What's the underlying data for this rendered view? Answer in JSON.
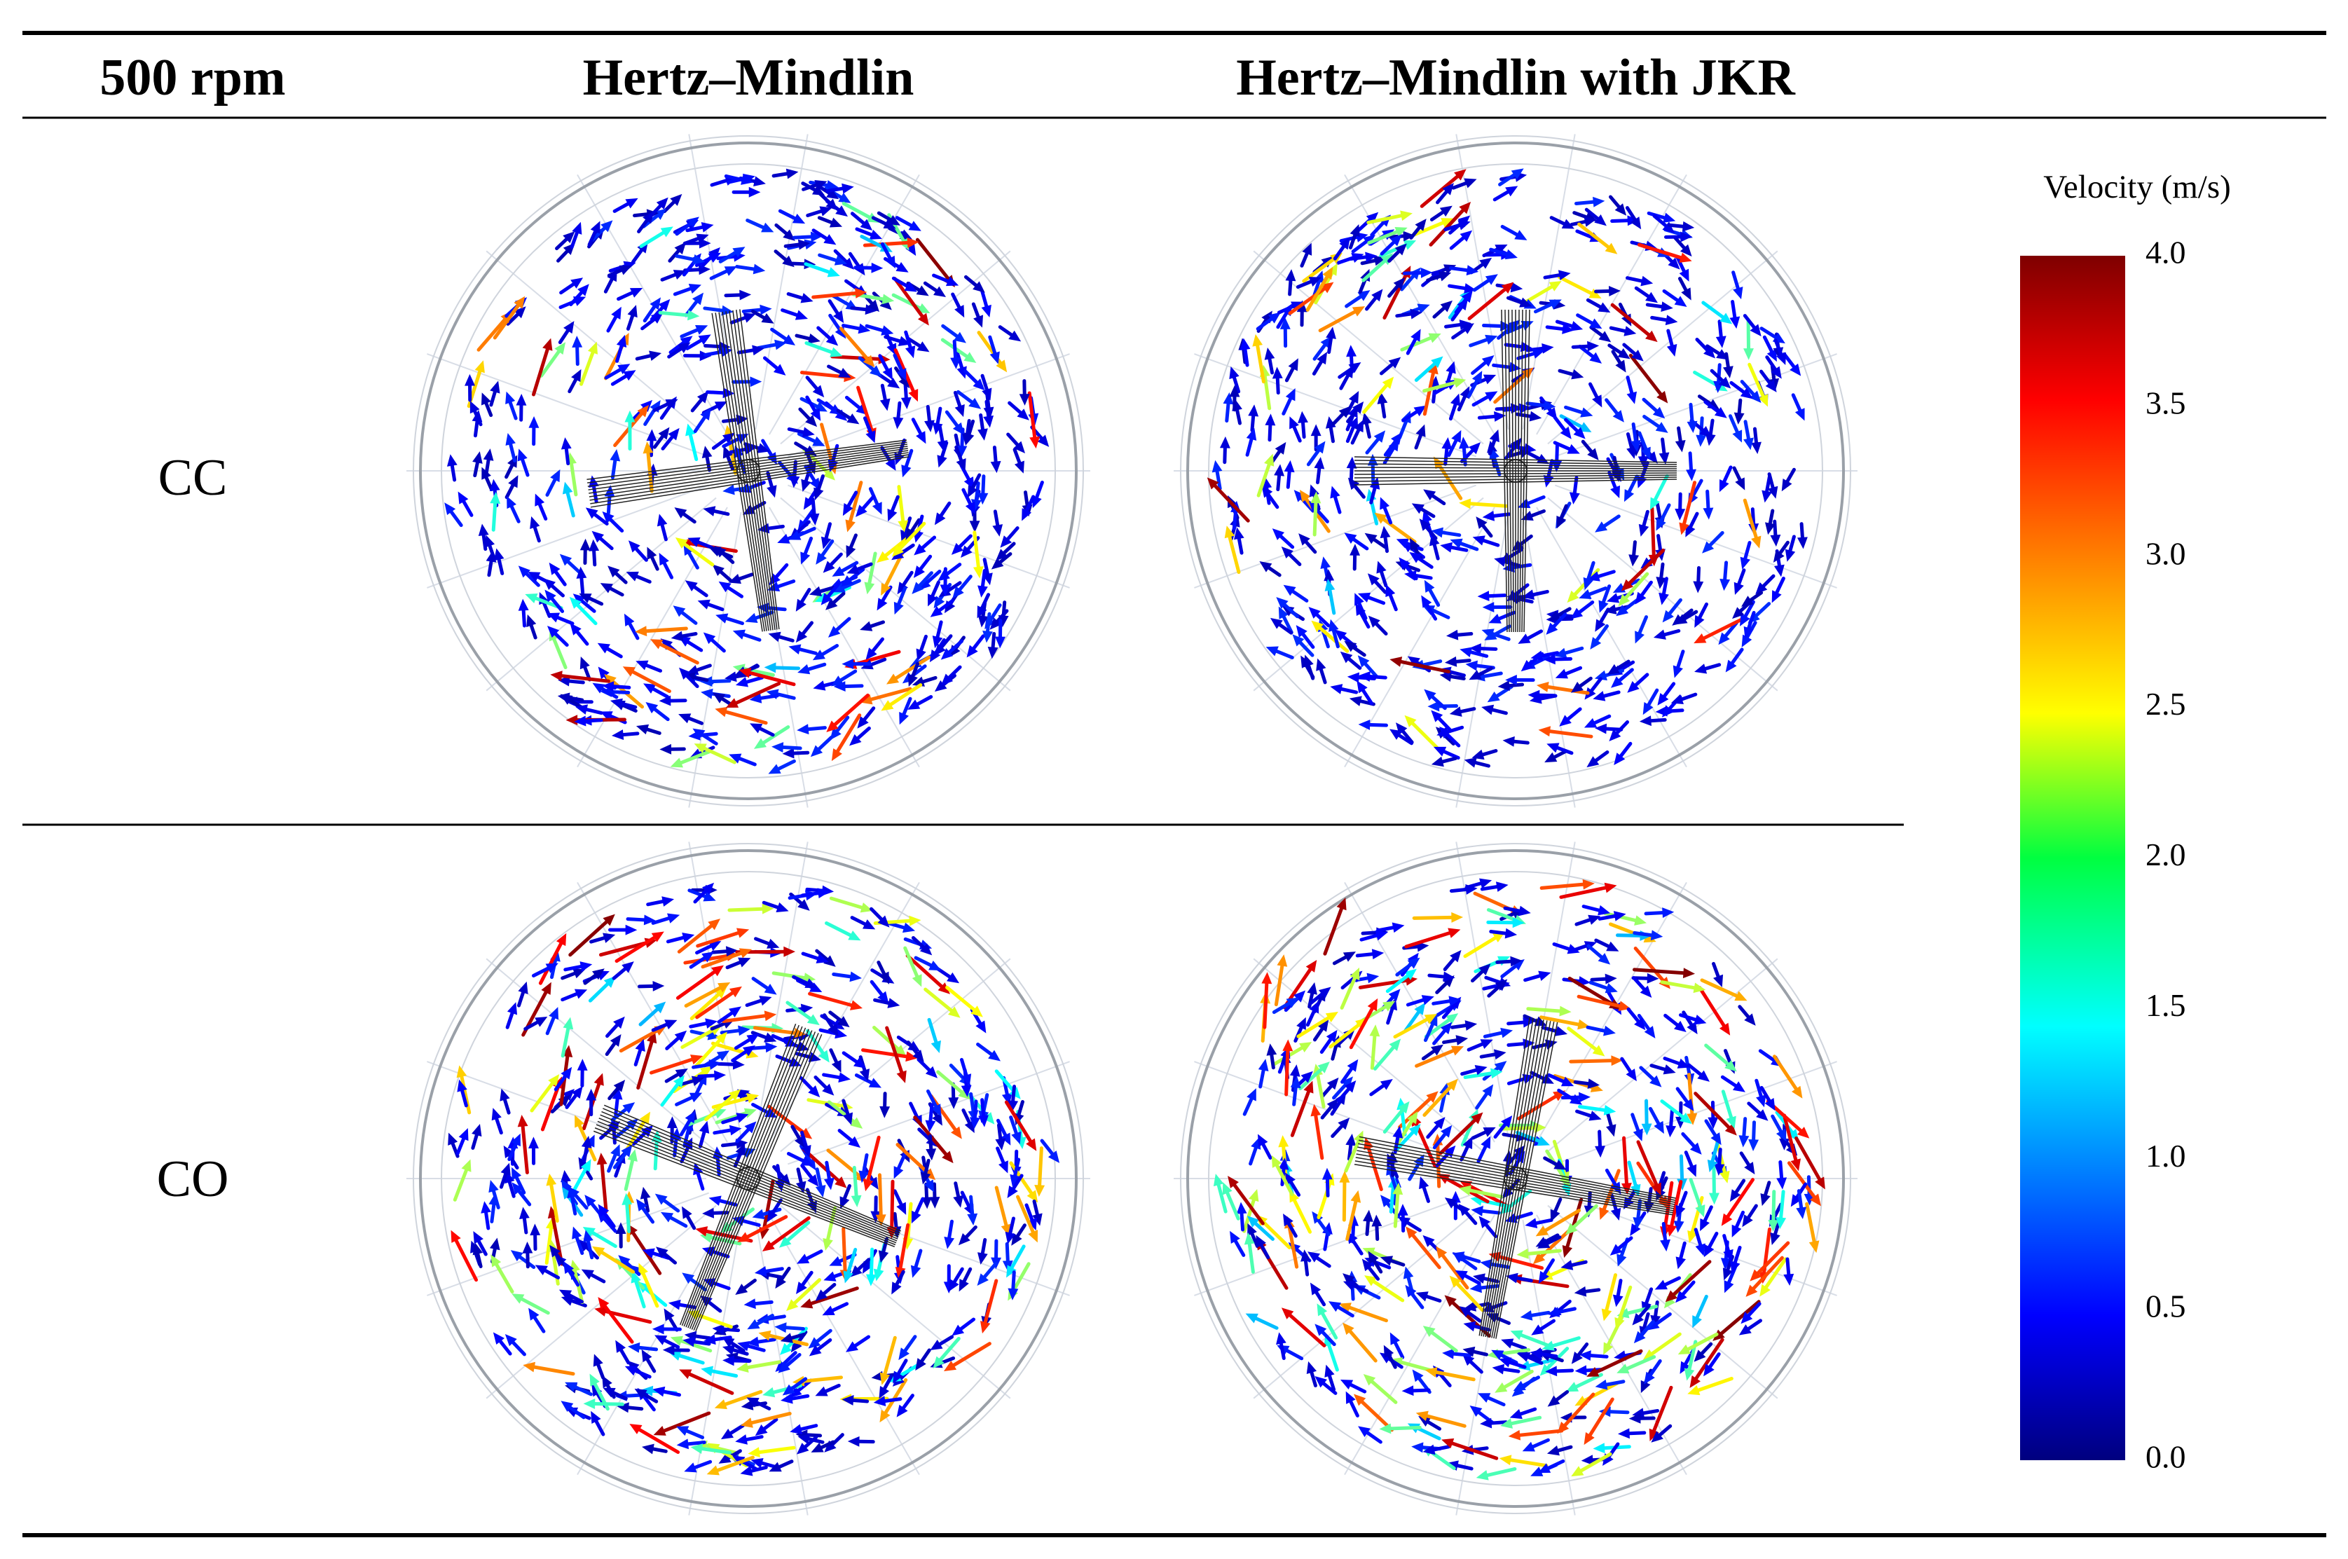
{
  "header": {
    "cells": [
      "500 rpm",
      "Hertz–Mindlin",
      "Hertz–Mindlin with JKR"
    ]
  },
  "rows": [
    {
      "label": "CC"
    },
    {
      "label": "CO"
    }
  ],
  "colorbar": {
    "title": "Velocity (m/s)",
    "range": [
      0,
      4
    ],
    "ticks": [
      {
        "value": 0,
        "label": "0.0"
      },
      {
        "value": 0.5,
        "label": "0.5"
      },
      {
        "value": 1,
        "label": "1.0"
      },
      {
        "value": 1.5,
        "label": "1.5"
      },
      {
        "value": 2,
        "label": "2.0"
      },
      {
        "value": 2.5,
        "label": "2.5"
      },
      {
        "value": 3,
        "label": "3.0"
      },
      {
        "value": 3.5,
        "label": "3.5"
      },
      {
        "value": 4,
        "label": "4.0"
      }
    ]
  }
}
